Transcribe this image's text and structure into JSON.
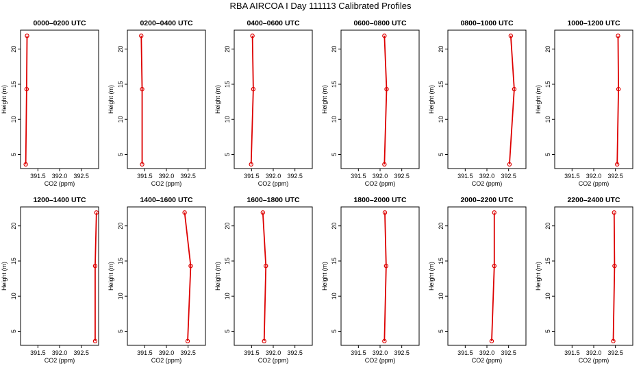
{
  "page": {
    "title": "RBA AIRCOA I  Day 111113  Calibrated Profiles"
  },
  "colors": {
    "series": "#dd0000",
    "axis": "#000000"
  },
  "chart_data": [
    {
      "type": "line",
      "title": "0000–0200 UTC",
      "xlabel": "CO2 (ppm)",
      "ylabel": "Height (m)",
      "xticks": [
        "391.5",
        "392.0",
        "392.5"
      ],
      "yticks": [
        "5",
        "10",
        "15",
        "20"
      ],
      "xlim": [
        391.1,
        392.9
      ],
      "ylim": [
        3.0,
        22.7
      ],
      "series": [
        {
          "x": [
            391.22,
            391.24,
            391.25
          ],
          "y": [
            3.6,
            14.3,
            21.9
          ]
        }
      ]
    },
    {
      "type": "line",
      "title": "0200–0400 UTC",
      "xlabel": "CO2 (ppm)",
      "ylabel": "Height (m)",
      "xticks": [
        "391.5",
        "392.0",
        "392.5"
      ],
      "yticks": [
        "5",
        "10",
        "15",
        "20"
      ],
      "xlim": [
        391.1,
        392.9
      ],
      "ylim": [
        3.0,
        22.7
      ],
      "series": [
        {
          "x": [
            391.44,
            391.44,
            391.42
          ],
          "y": [
            3.6,
            14.3,
            21.9
          ]
        }
      ]
    },
    {
      "type": "line",
      "title": "0400–0600 UTC",
      "xlabel": "CO2 (ppm)",
      "ylabel": "Height (m)",
      "xticks": [
        "391.5",
        "392.0",
        "392.5"
      ],
      "yticks": [
        "5",
        "10",
        "15",
        "20"
      ],
      "xlim": [
        391.1,
        392.9
      ],
      "ylim": [
        3.0,
        22.7
      ],
      "series": [
        {
          "x": [
            391.49,
            391.54,
            391.52
          ],
          "y": [
            3.6,
            14.3,
            21.9
          ]
        }
      ]
    },
    {
      "type": "line",
      "title": "0600–0800 UTC",
      "xlabel": "CO2 (ppm)",
      "ylabel": "Height (m)",
      "xticks": [
        "391.5",
        "392.0",
        "392.5"
      ],
      "yticks": [
        "5",
        "10",
        "15",
        "20"
      ],
      "xlim": [
        391.1,
        392.9
      ],
      "ylim": [
        3.0,
        22.7
      ],
      "series": [
        {
          "x": [
            392.1,
            392.15,
            392.1
          ],
          "y": [
            3.6,
            14.3,
            21.9
          ]
        }
      ]
    },
    {
      "type": "line",
      "title": "0800–1000 UTC",
      "xlabel": "CO2 (ppm)",
      "ylabel": "Height (m)",
      "xticks": [
        "391.5",
        "392.0",
        "392.5"
      ],
      "yticks": [
        "5",
        "10",
        "15",
        "20"
      ],
      "xlim": [
        391.1,
        392.9
      ],
      "ylim": [
        3.0,
        22.7
      ],
      "series": [
        {
          "x": [
            392.52,
            392.63,
            392.55
          ],
          "y": [
            3.6,
            14.3,
            21.9
          ]
        }
      ]
    },
    {
      "type": "line",
      "title": "1000–1200 UTC",
      "xlabel": "CO2 (ppm)",
      "ylabel": "Height (m)",
      "xticks": [
        "391.5",
        "392.0",
        "392.5"
      ],
      "yticks": [
        "5",
        "10",
        "15",
        "20"
      ],
      "xlim": [
        391.1,
        392.9
      ],
      "ylim": [
        3.0,
        22.7
      ],
      "series": [
        {
          "x": [
            392.54,
            392.57,
            392.56
          ],
          "y": [
            3.6,
            14.3,
            21.9
          ]
        }
      ]
    },
    {
      "type": "line",
      "title": "1200–1400 UTC",
      "xlabel": "CO2 (ppm)",
      "ylabel": "Height (m)",
      "xticks": [
        "391.5",
        "392.0",
        "392.5"
      ],
      "yticks": [
        "5",
        "10",
        "15",
        "20"
      ],
      "xlim": [
        391.1,
        392.9
      ],
      "ylim": [
        3.0,
        22.7
      ],
      "series": [
        {
          "x": [
            392.82,
            392.82,
            392.85
          ],
          "y": [
            3.6,
            14.3,
            21.9
          ]
        }
      ]
    },
    {
      "type": "line",
      "title": "1400–1600 UTC",
      "xlabel": "CO2 (ppm)",
      "ylabel": "Height (m)",
      "xticks": [
        "391.5",
        "392.0",
        "392.5"
      ],
      "yticks": [
        "5",
        "10",
        "15",
        "20"
      ],
      "xlim": [
        391.1,
        392.9
      ],
      "ylim": [
        3.0,
        22.7
      ],
      "series": [
        {
          "x": [
            392.49,
            392.56,
            392.42
          ],
          "y": [
            3.6,
            14.3,
            21.9
          ]
        }
      ]
    },
    {
      "type": "line",
      "title": "1600–1800 UTC",
      "xlabel": "CO2 (ppm)",
      "ylabel": "Height (m)",
      "xticks": [
        "391.5",
        "392.0",
        "392.5"
      ],
      "yticks": [
        "5",
        "10",
        "15",
        "20"
      ],
      "xlim": [
        391.1,
        392.9
      ],
      "ylim": [
        3.0,
        22.7
      ],
      "series": [
        {
          "x": [
            391.79,
            391.83,
            391.76
          ],
          "y": [
            3.6,
            14.3,
            21.9
          ]
        }
      ]
    },
    {
      "type": "line",
      "title": "1800–2000 UTC",
      "xlabel": "CO2 (ppm)",
      "ylabel": "Height (m)",
      "xticks": [
        "391.5",
        "392.0",
        "392.5"
      ],
      "yticks": [
        "5",
        "10",
        "15",
        "20"
      ],
      "xlim": [
        391.1,
        392.9
      ],
      "ylim": [
        3.0,
        22.7
      ],
      "series": [
        {
          "x": [
            392.1,
            392.14,
            392.11
          ],
          "y": [
            3.6,
            14.3,
            21.9
          ]
        }
      ]
    },
    {
      "type": "line",
      "title": "2000–2200 UTC",
      "xlabel": "CO2 (ppm)",
      "ylabel": "Height (m)",
      "xticks": [
        "391.5",
        "392.0",
        "392.5"
      ],
      "yticks": [
        "5",
        "10",
        "15",
        "20"
      ],
      "xlim": [
        391.1,
        392.9
      ],
      "ylim": [
        3.0,
        22.7
      ],
      "series": [
        {
          "x": [
            392.11,
            392.17,
            392.17
          ],
          "y": [
            3.6,
            14.3,
            21.9
          ]
        }
      ]
    },
    {
      "type": "line",
      "title": "2200–2400 UTC",
      "xlabel": "CO2 (ppm)",
      "ylabel": "Height (m)",
      "xticks": [
        "391.5",
        "392.0",
        "392.5"
      ],
      "yticks": [
        "5",
        "10",
        "15",
        "20"
      ],
      "xlim": [
        391.1,
        392.9
      ],
      "ylim": [
        3.0,
        22.7
      ],
      "series": [
        {
          "x": [
            392.45,
            392.48,
            392.47
          ],
          "y": [
            3.6,
            14.3,
            21.9
          ]
        }
      ]
    }
  ]
}
